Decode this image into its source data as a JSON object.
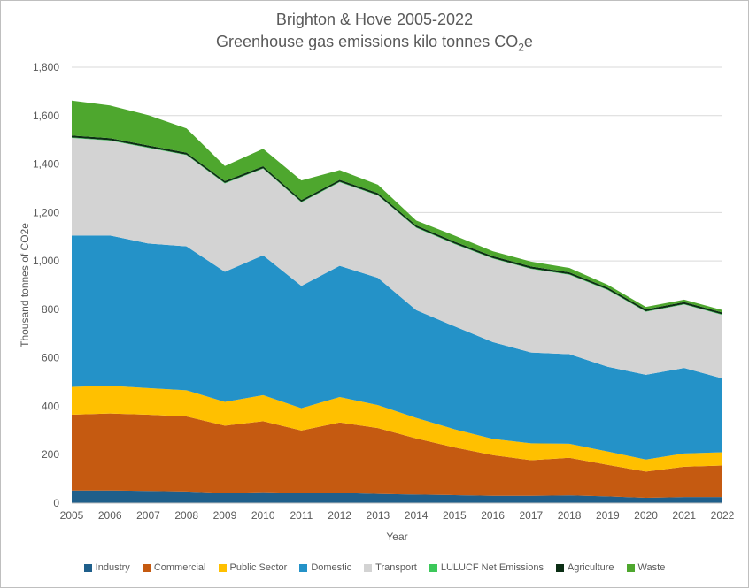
{
  "chart_data": {
    "type": "area",
    "stacked": true,
    "title_line1": "Brighton & Hove 2005-2022",
    "title_line2_main": "Greenhouse gas emissions kilo tonnes CO",
    "title_line2_sub": "2",
    "title_line2_end": "e",
    "xlabel": "Year",
    "ylabel": "Thousand tonnes of CO2e",
    "ylim": [
      0,
      1800
    ],
    "yticks": [
      0,
      200,
      400,
      600,
      800,
      1000,
      1200,
      1400,
      1600,
      1800
    ],
    "ytick_labels": [
      "0",
      "200",
      "400",
      "600",
      "800",
      "1,000",
      "1,200",
      "1,400",
      "1,600",
      "1,800"
    ],
    "grid": true,
    "legend_position": "bottom",
    "x": [
      "2005",
      "2006",
      "2007",
      "2008",
      "2009",
      "2010",
      "2011",
      "2012",
      "2013",
      "2014",
      "2015",
      "2016",
      "2017",
      "2018",
      "2019",
      "2020",
      "2021",
      "2022"
    ],
    "series": [
      {
        "name": "Industry",
        "color": "#1f5f8b",
        "values": [
          52,
          52,
          50,
          48,
          42,
          45,
          42,
          42,
          38,
          35,
          33,
          30,
          30,
          32,
          28,
          22,
          25,
          25
        ]
      },
      {
        "name": "Commercial",
        "color": "#c55a11",
        "values": [
          313,
          318,
          315,
          310,
          278,
          293,
          258,
          291,
          272,
          232,
          197,
          168,
          147,
          155,
          130,
          108,
          125,
          130
        ]
      },
      {
        "name": "Public Sector",
        "color": "#ffc000",
        "values": [
          115,
          115,
          110,
          108,
          98,
          108,
          92,
          105,
          95,
          85,
          75,
          67,
          70,
          58,
          55,
          50,
          55,
          55
        ]
      },
      {
        "name": "Domestic",
        "color": "#2492c8",
        "values": [
          625,
          620,
          597,
          594,
          537,
          577,
          505,
          542,
          525,
          445,
          425,
          400,
          375,
          370,
          350,
          350,
          353,
          305
        ]
      },
      {
        "name": "Transport",
        "color": "#d3d3d3",
        "values": [
          403,
          392,
          395,
          377,
          365,
          358,
          345,
          345,
          340,
          340,
          340,
          345,
          345,
          328,
          317,
          260,
          262,
          262
        ]
      },
      {
        "name": "LULUCF Net Emissions",
        "color": "#3cc85a",
        "values": [
          2,
          2,
          2,
          2,
          2,
          2,
          2,
          2,
          2,
          2,
          2,
          2,
          2,
          2,
          2,
          2,
          2,
          2
        ]
      },
      {
        "name": "Agriculture",
        "color": "#0b2e14",
        "values": [
          8,
          8,
          8,
          8,
          8,
          8,
          8,
          8,
          8,
          8,
          8,
          8,
          8,
          8,
          8,
          8,
          8,
          8
        ]
      },
      {
        "name": "Waste",
        "color": "#4ea72e",
        "values": [
          144,
          135,
          125,
          100,
          62,
          72,
          80,
          40,
          35,
          20,
          25,
          20,
          20,
          18,
          12,
          10,
          10,
          10
        ]
      }
    ]
  }
}
